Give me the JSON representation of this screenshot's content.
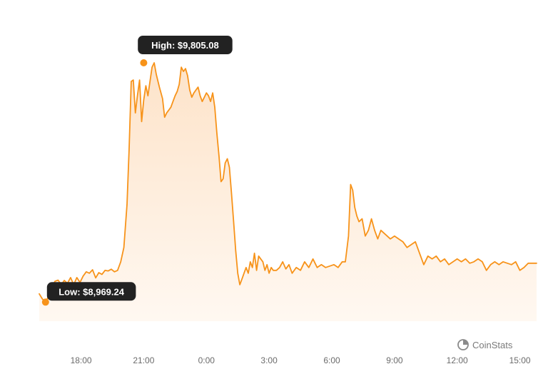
{
  "brand": {
    "name": "CoinStats",
    "icon": "coinstats-logo-icon"
  },
  "colors": {
    "line": "#f7931a",
    "fill_top": "#fde3c9",
    "fill_bottom": "#fff8f1",
    "tooltip_bg": "#222222",
    "tooltip_text": "#ffffff",
    "axis_text": "#6b6b6b",
    "brand_text": "#7a7a7a"
  },
  "chart_data": {
    "type": "area",
    "title": "",
    "xlabel": "",
    "ylabel": "",
    "grid": false,
    "legend": "none",
    "x_ticks": [
      "18:00",
      "21:00",
      "0:00",
      "3:00",
      "6:00",
      "9:00",
      "12:00",
      "15:00"
    ],
    "x_unit": "hours",
    "xlim": [
      16.0,
      39.8
    ],
    "ylim": [
      8920,
      9845
    ],
    "high": {
      "label": "High: $9,805.08",
      "value": 9805.08,
      "x": 21.0
    },
    "low": {
      "label": "Low: $8,969.24",
      "value": 8969.24,
      "x": 16.3
    },
    "series": [
      {
        "points": [
          [
            16.0,
            8998
          ],
          [
            16.15,
            8980
          ],
          [
            16.3,
            8969.24
          ],
          [
            16.45,
            8990
          ],
          [
            16.6,
            9020
          ],
          [
            16.75,
            9042
          ],
          [
            16.9,
            9046
          ],
          [
            17.05,
            9030
          ],
          [
            17.2,
            9045
          ],
          [
            17.35,
            9035
          ],
          [
            17.5,
            9055
          ],
          [
            17.65,
            9030
          ],
          [
            17.8,
            9055
          ],
          [
            17.95,
            9038
          ],
          [
            18.1,
            9060
          ],
          [
            18.25,
            9075
          ],
          [
            18.4,
            9070
          ],
          [
            18.55,
            9082
          ],
          [
            18.7,
            9054
          ],
          [
            18.85,
            9072
          ],
          [
            19.0,
            9066
          ],
          [
            19.15,
            9080
          ],
          [
            19.3,
            9078
          ],
          [
            19.45,
            9084
          ],
          [
            19.6,
            9075
          ],
          [
            19.75,
            9080
          ],
          [
            19.9,
            9110
          ],
          [
            20.05,
            9160
          ],
          [
            20.2,
            9310
          ],
          [
            20.3,
            9500
          ],
          [
            20.4,
            9740
          ],
          [
            20.5,
            9745
          ],
          [
            20.6,
            9630
          ],
          [
            20.7,
            9690
          ],
          [
            20.8,
            9745
          ],
          [
            20.9,
            9600
          ],
          [
            21.0,
            9675
          ],
          [
            21.1,
            9725
          ],
          [
            21.2,
            9690
          ],
          [
            21.3,
            9740
          ],
          [
            21.4,
            9790
          ],
          [
            21.5,
            9805.08
          ],
          [
            21.6,
            9765
          ],
          [
            21.75,
            9720
          ],
          [
            21.9,
            9680
          ],
          [
            22.0,
            9615
          ],
          [
            22.1,
            9630
          ],
          [
            22.2,
            9640
          ],
          [
            22.3,
            9650
          ],
          [
            22.4,
            9670
          ],
          [
            22.5,
            9690
          ],
          [
            22.6,
            9705
          ],
          [
            22.7,
            9730
          ],
          [
            22.8,
            9790
          ],
          [
            22.9,
            9775
          ],
          [
            23.0,
            9785
          ],
          [
            23.1,
            9760
          ],
          [
            23.2,
            9710
          ],
          [
            23.3,
            9685
          ],
          [
            23.4,
            9700
          ],
          [
            23.5,
            9710
          ],
          [
            23.6,
            9720
          ],
          [
            23.7,
            9690
          ],
          [
            23.8,
            9670
          ],
          [
            23.9,
            9685
          ],
          [
            24.0,
            9700
          ],
          [
            24.1,
            9690
          ],
          [
            24.2,
            9670
          ],
          [
            24.3,
            9700
          ],
          [
            24.4,
            9650
          ],
          [
            24.5,
            9560
          ],
          [
            24.6,
            9480
          ],
          [
            24.7,
            9390
          ],
          [
            24.8,
            9400
          ],
          [
            24.9,
            9455
          ],
          [
            25.0,
            9470
          ],
          [
            25.1,
            9440
          ],
          [
            25.2,
            9350
          ],
          [
            25.3,
            9250
          ],
          [
            25.4,
            9150
          ],
          [
            25.5,
            9070
          ],
          [
            25.6,
            9030
          ],
          [
            25.7,
            9050
          ],
          [
            25.8,
            9070
          ],
          [
            25.9,
            9090
          ],
          [
            26.0,
            9070
          ],
          [
            26.1,
            9110
          ],
          [
            26.2,
            9090
          ],
          [
            26.3,
            9140
          ],
          [
            26.4,
            9080
          ],
          [
            26.5,
            9130
          ],
          [
            26.6,
            9120
          ],
          [
            26.7,
            9110
          ],
          [
            26.8,
            9080
          ],
          [
            26.9,
            9100
          ],
          [
            27.0,
            9070
          ],
          [
            27.1,
            9090
          ],
          [
            27.2,
            9080
          ],
          [
            27.35,
            9080
          ],
          [
            27.5,
            9090
          ],
          [
            27.65,
            9110
          ],
          [
            27.8,
            9085
          ],
          [
            27.95,
            9100
          ],
          [
            28.1,
            9070
          ],
          [
            28.3,
            9090
          ],
          [
            28.5,
            9080
          ],
          [
            28.7,
            9110
          ],
          [
            28.9,
            9090
          ],
          [
            29.1,
            9120
          ],
          [
            29.3,
            9090
          ],
          [
            29.5,
            9100
          ],
          [
            29.7,
            9090
          ],
          [
            29.9,
            9095
          ],
          [
            30.1,
            9100
          ],
          [
            30.3,
            9090
          ],
          [
            30.5,
            9110
          ],
          [
            30.65,
            9110
          ],
          [
            30.8,
            9200
          ],
          [
            30.9,
            9380
          ],
          [
            31.0,
            9360
          ],
          [
            31.1,
            9300
          ],
          [
            31.2,
            9270
          ],
          [
            31.3,
            9250
          ],
          [
            31.45,
            9260
          ],
          [
            31.6,
            9200
          ],
          [
            31.75,
            9220
          ],
          [
            31.9,
            9260
          ],
          [
            32.05,
            9220
          ],
          [
            32.2,
            9190
          ],
          [
            32.35,
            9220
          ],
          [
            32.5,
            9210
          ],
          [
            32.65,
            9200
          ],
          [
            32.8,
            9190
          ],
          [
            33.0,
            9200
          ],
          [
            33.2,
            9190
          ],
          [
            33.4,
            9180
          ],
          [
            33.6,
            9160
          ],
          [
            33.8,
            9170
          ],
          [
            34.0,
            9180
          ],
          [
            34.2,
            9140
          ],
          [
            34.4,
            9100
          ],
          [
            34.6,
            9130
          ],
          [
            34.8,
            9120
          ],
          [
            35.0,
            9130
          ],
          [
            35.2,
            9110
          ],
          [
            35.4,
            9120
          ],
          [
            35.6,
            9100
          ],
          [
            35.8,
            9110
          ],
          [
            36.0,
            9120
          ],
          [
            36.2,
            9110
          ],
          [
            36.4,
            9120
          ],
          [
            36.6,
            9105
          ],
          [
            36.8,
            9110
          ],
          [
            37.0,
            9120
          ],
          [
            37.2,
            9110
          ],
          [
            37.4,
            9080
          ],
          [
            37.6,
            9100
          ],
          [
            37.8,
            9110
          ],
          [
            38.0,
            9100
          ],
          [
            38.2,
            9110
          ],
          [
            38.4,
            9105
          ],
          [
            38.6,
            9100
          ],
          [
            38.8,
            9110
          ],
          [
            39.0,
            9080
          ],
          [
            39.2,
            9090
          ],
          [
            39.4,
            9105
          ],
          [
            39.6,
            9105
          ],
          [
            39.8,
            9105
          ]
        ]
      }
    ]
  }
}
